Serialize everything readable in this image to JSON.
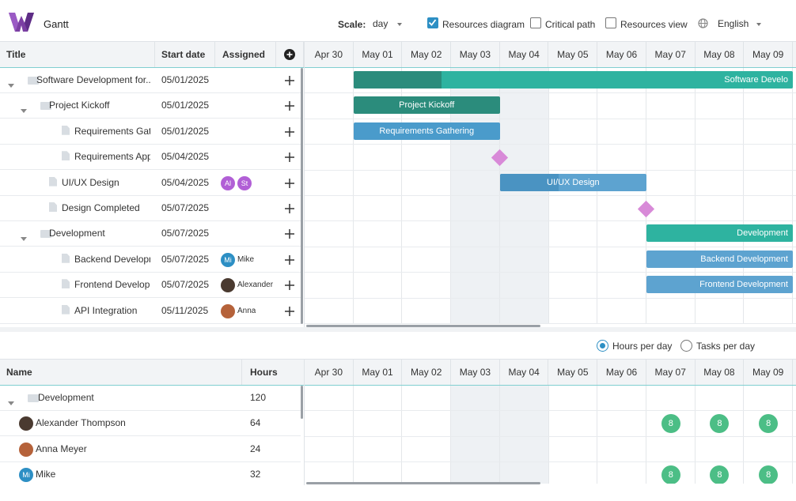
{
  "app": {
    "title": "Gantt"
  },
  "toolbar": {
    "scale_label": "Scale:",
    "scale_value": "day",
    "resources_diagram": {
      "label": "Resources diagram",
      "checked": true
    },
    "critical_path": {
      "label": "Critical path",
      "checked": false
    },
    "resources_view": {
      "label": "Resources view",
      "checked": false
    },
    "language": "English"
  },
  "task_grid": {
    "columns": [
      "Title",
      "Start date",
      "Assigned"
    ],
    "add_icon": "plus-circle-icon",
    "rows": [
      {
        "title": "Software Development for...",
        "start": "05/01/2025",
        "type": "folder",
        "expanded": true,
        "assigned": []
      },
      {
        "title": "Project Kickoff",
        "start": "05/01/2025",
        "type": "folder",
        "expanded": true,
        "assigned": []
      },
      {
        "title": "Requirements Gath...",
        "start": "05/01/2025",
        "type": "file",
        "assigned": []
      },
      {
        "title": "Requirements Appr...",
        "start": "05/04/2025",
        "type": "file",
        "assigned": []
      },
      {
        "title": "UI/UX Design",
        "start": "05/04/2025",
        "type": "file",
        "assigned": [
          {
            "initials": "Al",
            "color": "#b15fd6"
          },
          {
            "initials": "St",
            "color": "#b15fd6"
          }
        ]
      },
      {
        "title": "Design Completed",
        "start": "05/07/2025",
        "type": "file",
        "assigned": []
      },
      {
        "title": "Development",
        "start": "05/07/2025",
        "type": "folder",
        "expanded": true,
        "assigned": []
      },
      {
        "title": "Backend Developm...",
        "start": "05/07/2025",
        "type": "file",
        "assigned": [
          {
            "initials": "Mi",
            "name": "Mike",
            "color": "#2d8fc4"
          }
        ]
      },
      {
        "title": "Frontend Developm...",
        "start": "05/07/2025",
        "type": "file",
        "assigned": [
          {
            "initials": "",
            "name": "Alexander",
            "color": "#4a3a30"
          }
        ]
      },
      {
        "title": "API Integration",
        "start": "05/11/2025",
        "type": "file",
        "assigned": [
          {
            "initials": "",
            "name": "Anna",
            "color": "#b5623a"
          }
        ]
      }
    ]
  },
  "timeline": {
    "days": [
      "Apr 30",
      "May 01",
      "May 02",
      "May 03",
      "May 04",
      "May 05",
      "May 06",
      "May 07",
      "May 08",
      "May 09"
    ],
    "weekend_days": [
      "May 03",
      "May 04"
    ],
    "bars": [
      {
        "row": 0,
        "label": "Software Develo",
        "start_day": 1,
        "end_day": 10,
        "color": "#2eb3a0",
        "progress": 0.2,
        "progress_color": "#2b8c7c"
      },
      {
        "row": 1,
        "label": "Project Kickoff",
        "start_day": 1,
        "end_day": 4,
        "color": "#2b8c7c",
        "progress": 1
      },
      {
        "row": 2,
        "label": "Requirements Gathering",
        "start_day": 1,
        "end_day": 4,
        "color": "#4a9bcb",
        "progress": 1
      },
      {
        "row": 4,
        "label": "UI/UX Design",
        "start_day": 4,
        "end_day": 7,
        "color": "#5da3d0",
        "progress": 0.4,
        "progress_color": "#4a93c2"
      },
      {
        "row": 6,
        "label": "Development",
        "start_day": 7,
        "end_day": 10,
        "color": "#2eb3a0",
        "progress": 0
      },
      {
        "row": 7,
        "label": "Backend Development",
        "start_day": 7,
        "end_day": 10,
        "color": "#5da3d0",
        "progress": 0
      },
      {
        "row": 8,
        "label": "Frontend Development",
        "start_day": 7,
        "end_day": 10,
        "color": "#5da3d0",
        "progress": 0
      }
    ],
    "milestones": [
      {
        "row": 3,
        "day": 4
      },
      {
        "row": 5,
        "day": 7
      }
    ]
  },
  "resources": {
    "hours_per_day": {
      "label": "Hours per day",
      "selected": true
    },
    "tasks_per_day": {
      "label": "Tasks per day",
      "selected": false
    },
    "columns": [
      "Name",
      "Hours"
    ],
    "rows": [
      {
        "name": "Development",
        "hours": "120",
        "type": "folder",
        "avatar": null
      },
      {
        "name": "Alexander Thompson",
        "hours": "64",
        "type": "person",
        "avatar": {
          "initials": "",
          "color": "#4a3a30"
        }
      },
      {
        "name": "Anna Meyer",
        "hours": "24",
        "type": "person",
        "avatar": {
          "initials": "",
          "color": "#b5623a"
        }
      },
      {
        "name": "Mike",
        "hours": "32",
        "type": "person",
        "avatar": {
          "initials": "Mi",
          "color": "#2d8fc4"
        }
      }
    ],
    "load": [
      {
        "row": 1,
        "days": [
          7,
          8,
          9
        ],
        "value": "8"
      },
      {
        "row": 3,
        "days": [
          7,
          8,
          9
        ],
        "value": "8"
      }
    ]
  }
}
